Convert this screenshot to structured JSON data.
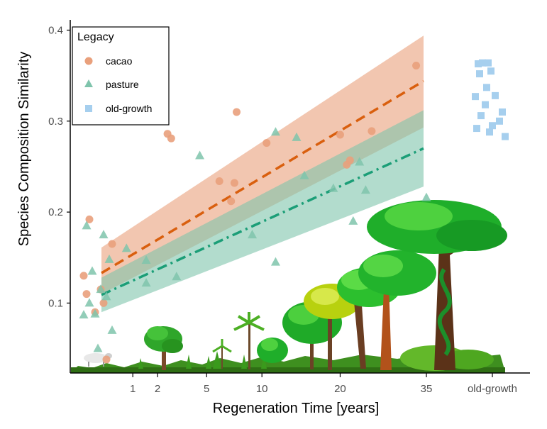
{
  "chart_data": {
    "type": "scatter",
    "title": "",
    "xlabel": "Regeneration Time [years]",
    "ylabel": "Species Composition Similarity",
    "x_scale": "sqrt",
    "x_domain": [
      0,
      35
    ],
    "ylim": [
      0.02,
      0.4
    ],
    "x_ticks": [
      1,
      2,
      5,
      10,
      20,
      35
    ],
    "x_tick_labels": [
      "1",
      "2",
      "5",
      "10",
      "20",
      "35"
    ],
    "x_extra_category": "old-growth",
    "y_ticks": [
      0.1,
      0.2,
      0.3,
      0.4
    ],
    "y_tick_labels": [
      "0.1",
      "0.2",
      "0.3",
      "0.4"
    ],
    "grid": false,
    "legend": {
      "title": "Legacy",
      "position": "top-left",
      "entries": [
        {
          "label": "cacao",
          "marker": "circle",
          "color": "#e9a07c"
        },
        {
          "label": "pasture",
          "marker": "triangle",
          "color": "#7fc4ac"
        },
        {
          "label": "old-growth",
          "marker": "square",
          "color": "#a6cfee"
        }
      ]
    },
    "series": [
      {
        "name": "cacao",
        "marker": "circle",
        "color": "#e9a07c",
        "points": [
          [
            0,
            0.13
          ],
          [
            0,
            0.192
          ],
          [
            0,
            0.09
          ],
          [
            0,
            0.115
          ],
          [
            0,
            0.038
          ],
          [
            0,
            0.165
          ],
          [
            0,
            0.11
          ],
          [
            0,
            0.1
          ],
          [
            2.5,
            0.286
          ],
          [
            2.7,
            0.281
          ],
          [
            6,
            0.234
          ],
          [
            7,
            0.212
          ],
          [
            7.3,
            0.232
          ],
          [
            7.5,
            0.31
          ],
          [
            10.5,
            0.276
          ],
          [
            20,
            0.285
          ],
          [
            21,
            0.252
          ],
          [
            21.5,
            0.257
          ],
          [
            25,
            0.289
          ],
          [
            33,
            0.361
          ]
        ],
        "trend": {
          "x": [
            0,
            35
          ],
          "y": [
            0.133,
            0.344
          ],
          "band_lower": [
            0.11,
            0.293
          ],
          "band_upper": [
            0.161,
            0.394
          ],
          "color": "#d95f0e",
          "dash": "dashed"
        }
      },
      {
        "name": "pasture",
        "marker": "triangle",
        "color": "#7fc4ac",
        "points": [
          [
            0,
            0.087
          ],
          [
            0,
            0.1
          ],
          [
            0,
            0.088
          ],
          [
            0,
            0.115
          ],
          [
            0,
            0.107
          ],
          [
            0,
            0.07
          ],
          [
            0,
            0.185
          ],
          [
            0,
            0.175
          ],
          [
            0,
            0.135
          ],
          [
            0,
            0.148
          ],
          [
            0,
            0.05
          ],
          [
            0.8,
            0.16
          ],
          [
            1.5,
            0.147
          ],
          [
            1.5,
            0.122
          ],
          [
            3,
            0.129
          ],
          [
            4.5,
            0.262
          ],
          [
            9,
            0.175
          ],
          [
            11.5,
            0.145
          ],
          [
            11.5,
            0.288
          ],
          [
            14,
            0.282
          ],
          [
            15,
            0.24
          ],
          [
            19,
            0.226
          ],
          [
            22,
            0.19
          ],
          [
            23,
            0.255
          ],
          [
            24,
            0.224
          ],
          [
            35,
            0.216
          ]
        ],
        "trend": {
          "x": [
            0,
            35
          ],
          "y": [
            0.109,
            0.27
          ],
          "band_lower": [
            0.09,
            0.228
          ],
          "band_upper": [
            0.128,
            0.312
          ],
          "color": "#1b9e77",
          "dash": "dashdot"
        }
      },
      {
        "name": "old-growth",
        "marker": "square",
        "color": "#a6cfee",
        "points": [
          [
            0,
            0.363
          ],
          [
            0,
            0.364
          ],
          [
            0,
            0.364
          ],
          [
            0,
            0.355
          ],
          [
            0,
            0.352
          ],
          [
            0,
            0.337
          ],
          [
            0,
            0.328
          ],
          [
            0,
            0.327
          ],
          [
            0,
            0.318
          ],
          [
            0,
            0.31
          ],
          [
            0,
            0.306
          ],
          [
            0,
            0.3
          ],
          [
            0,
            0.295
          ],
          [
            0,
            0.292
          ],
          [
            0,
            0.288
          ],
          [
            0,
            0.283
          ]
        ]
      }
    ]
  },
  "colors": {
    "axis": "#000000",
    "tick_label": "#4d4d4d",
    "cacao": "#e9a07c",
    "cacao_line": "#d95f0e",
    "pasture": "#7fc4ac",
    "pasture_line": "#1b9e77",
    "old_growth": "#a6cfee"
  },
  "decoration": {
    "icon_names": [
      "forest-succession-illustration",
      "grazing-sheep-icon"
    ]
  }
}
